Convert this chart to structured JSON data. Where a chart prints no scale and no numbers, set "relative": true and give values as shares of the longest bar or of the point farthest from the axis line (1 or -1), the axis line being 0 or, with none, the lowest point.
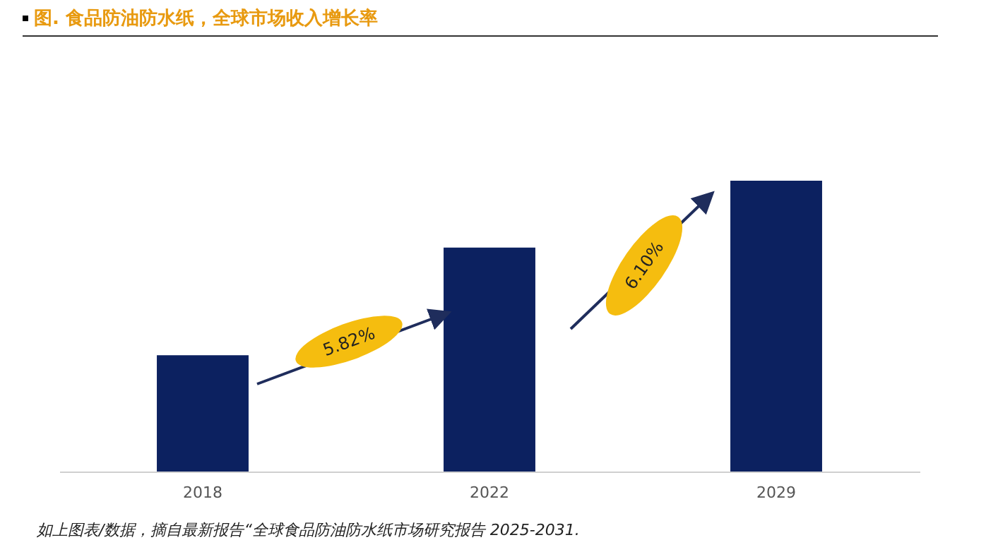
{
  "chart_data": {
    "type": "bar",
    "relative": true,
    "title": "图.  食品防油防水纸，全球市场收入增长率",
    "categories": [
      "2018",
      "2022",
      "2029"
    ],
    "values": [
      0.4,
      0.77,
      1
    ],
    "color": "#0c2160",
    "annotations": [
      "5.82%",
      "6.10%",
      "如上图表/数据，摘自最新报告“全球食品防油防水纸市场研究报告 2025-2031."
    ]
  }
}
